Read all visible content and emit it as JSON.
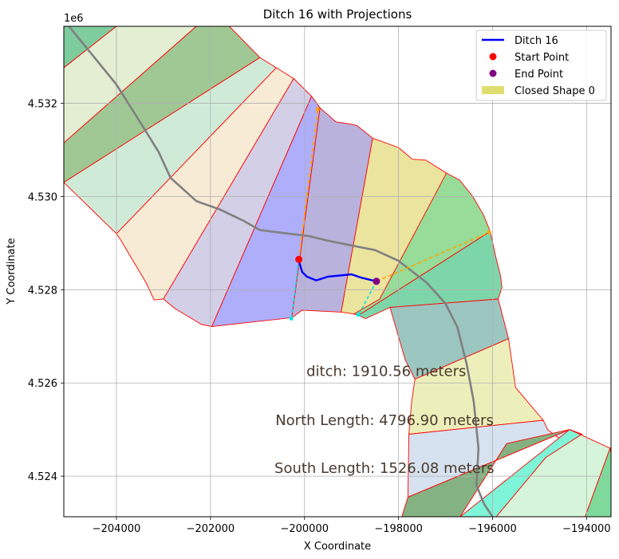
{
  "chart_data": {
    "type": "line",
    "title": "Ditch 16 with Projections",
    "xlabel": "X Coordinate",
    "ylabel": "Y Coordinate",
    "y_offset_label": "1e6",
    "xlim": [
      -205120,
      -193480
    ],
    "ylim": [
      4.52313,
      4.53365
    ],
    "x_ticks": [
      -204000,
      -202000,
      -200000,
      -198000,
      -196000,
      -194000
    ],
    "x_tick_labels": [
      "−204000",
      "−202000",
      "−200000",
      "−198000",
      "−196000",
      "−194000"
    ],
    "y_ticks": [
      4.524,
      4.526,
      4.528,
      4.53,
      4.532
    ],
    "y_tick_labels": [
      "4.524",
      "4.526",
      "4.528",
      "4.530",
      "4.532"
    ],
    "grid": true,
    "legend_position": "upper right",
    "legend": [
      {
        "label": "Ditch 16",
        "kind": "line",
        "color": "#0000ff"
      },
      {
        "label": "Start Point",
        "kind": "marker",
        "color": "#ff0000"
      },
      {
        "label": "End Point",
        "kind": "marker",
        "color": "#800080"
      },
      {
        "label": "Closed Shape 0",
        "kind": "patch",
        "color": "#e0dd70"
      }
    ],
    "annotations": [
      {
        "text": "ditch: 1910.56 meters",
        "x": -199960,
        "y": 4.52625
      },
      {
        "text": "North Length: 4796.90 meters",
        "x": -200620,
        "y": 4.5252
      },
      {
        "text": "South Length: 1526.08 meters",
        "x": -200640,
        "y": 4.52417
      }
    ],
    "zones": [
      {
        "color": "#7fcc9e",
        "points": [
          [
            -205120,
            4.53365
          ],
          [
            -204000,
            4.53365
          ],
          [
            -205120,
            4.53276
          ]
        ]
      },
      {
        "color": "#e3eed3",
        "points": [
          [
            -204000,
            4.53365
          ],
          [
            -202300,
            4.53365
          ],
          [
            -205120,
            4.53115
          ],
          [
            -205120,
            4.53276
          ]
        ]
      },
      {
        "color": "#a0c894",
        "points": [
          [
            -202300,
            4.53365
          ],
          [
            -201600,
            4.53365
          ],
          [
            -200950,
            4.53298
          ],
          [
            -205120,
            4.5303
          ],
          [
            -205120,
            4.53115
          ]
        ]
      },
      {
        "color": "#d0ead8",
        "points": [
          [
            -200950,
            4.53298
          ],
          [
            -200600,
            4.53276
          ],
          [
            -204000,
            4.5292
          ],
          [
            -205120,
            4.5303
          ]
        ]
      },
      {
        "color": "#f8ebd5",
        "points": [
          [
            -200600,
            4.53276
          ],
          [
            -200230,
            4.53253
          ],
          [
            -203000,
            4.5278
          ],
          [
            -203200,
            4.52778
          ],
          [
            -203370,
            4.52815
          ],
          [
            -203900,
            4.52905
          ],
          [
            -204000,
            4.5292
          ]
        ]
      },
      {
        "color": "#d3cfe7",
        "points": [
          [
            -200230,
            4.53253
          ],
          [
            -199850,
            4.53215
          ],
          [
            -201970,
            4.52721
          ],
          [
            -202200,
            4.52726
          ],
          [
            -202760,
            4.5276
          ],
          [
            -203000,
            4.5278
          ]
        ]
      },
      {
        "color": "#aeaefb",
        "points": [
          [
            -199850,
            4.53215
          ],
          [
            -199670,
            4.5319
          ],
          [
            -200270,
            4.5274
          ],
          [
            -201970,
            4.52721
          ]
        ]
      },
      {
        "color": "#b8b2dc",
        "points": [
          [
            -199670,
            4.5319
          ],
          [
            -199330,
            4.5316
          ],
          [
            -199000,
            4.53155
          ],
          [
            -198880,
            4.53152
          ],
          [
            -198550,
            4.53125
          ],
          [
            -199220,
            4.52752
          ],
          [
            -200050,
            4.52756
          ],
          [
            -200270,
            4.5274
          ]
        ]
      },
      {
        "color": "#ebe49f",
        "points": [
          [
            -198550,
            4.53125
          ],
          [
            -198000,
            4.53105
          ],
          [
            -197710,
            4.5308
          ],
          [
            -197420,
            4.53078
          ],
          [
            -196980,
            4.5305
          ],
          [
            -198200,
            4.5278
          ],
          [
            -198950,
            4.52748
          ],
          [
            -199220,
            4.52752
          ]
        ]
      },
      {
        "color": "#97dc98",
        "points": [
          [
            -196980,
            4.5305
          ],
          [
            -196700,
            4.53035
          ],
          [
            -196420,
            4.53
          ],
          [
            -196190,
            4.5296
          ],
          [
            -196050,
            4.52925
          ],
          [
            -198850,
            4.52745
          ],
          [
            -198950,
            4.52748
          ],
          [
            -198400,
            4.5278
          ]
        ]
      },
      {
        "color": "#7dd6aa",
        "points": [
          [
            -196050,
            4.52925
          ],
          [
            -195930,
            4.5287
          ],
          [
            -195830,
            4.5283
          ],
          [
            -195800,
            4.52805
          ],
          [
            -195880,
            4.5278
          ],
          [
            -198180,
            4.52762
          ],
          [
            -198700,
            4.52738
          ],
          [
            -198850,
            4.52745
          ]
        ]
      },
      {
        "color": "#9cc6c0",
        "points": [
          [
            -195880,
            4.5278
          ],
          [
            -195660,
            4.52695
          ],
          [
            -197650,
            4.52608
          ],
          [
            -197860,
            4.5265
          ],
          [
            -198180,
            4.52762
          ]
        ]
      },
      {
        "color": "#edefba",
        "points": [
          [
            -195660,
            4.52695
          ],
          [
            -195510,
            4.5259
          ],
          [
            -194920,
            4.5252
          ],
          [
            -197780,
            4.5249
          ],
          [
            -197720,
            4.5256
          ],
          [
            -197650,
            4.52608
          ]
        ]
      },
      {
        "color": "#d6e2ef",
        "points": [
          [
            -194920,
            4.5252
          ],
          [
            -194830,
            4.525
          ],
          [
            -194570,
            4.5248
          ],
          [
            -194360,
            4.525
          ],
          [
            -197800,
            4.52355
          ],
          [
            -197780,
            4.5249
          ]
        ]
      },
      {
        "color": "#84b283",
        "points": [
          [
            -194360,
            4.525
          ],
          [
            -195700,
            4.5247
          ],
          [
            -196690,
            4.52313
          ],
          [
            -197930,
            4.52313
          ],
          [
            -197800,
            4.52355
          ]
        ]
      },
      {
        "color": "#7ef4d8",
        "points": [
          [
            -194360,
            4.525
          ],
          [
            -196690,
            4.52313
          ],
          [
            -195920,
            4.52313
          ],
          [
            -194870,
            4.5244
          ],
          [
            -194100,
            4.5249
          ]
        ]
      },
      {
        "color": "#d6f4d9",
        "points": [
          [
            -194360,
            4.525
          ],
          [
            -194100,
            4.5249
          ],
          [
            -194870,
            4.5244
          ],
          [
            -195920,
            4.52313
          ],
          [
            -194030,
            4.52313
          ],
          [
            -193500,
            4.5246
          ]
        ]
      },
      {
        "color": "#7ed99a",
        "points": [
          [
            -193500,
            4.5246
          ],
          [
            -194030,
            4.52313
          ],
          [
            -193480,
            4.52313
          ],
          [
            -193480,
            4.5245
          ]
        ]
      }
    ],
    "centerline": {
      "color": "#808080",
      "points": [
        [
          -205050,
          4.5337
        ],
        [
          -204500,
          4.53302
        ],
        [
          -204000,
          4.5324
        ],
        [
          -203500,
          4.5316
        ],
        [
          -203100,
          4.53095
        ],
        [
          -202850,
          4.5304
        ],
        [
          -202300,
          4.5299
        ],
        [
          -201800,
          4.52972
        ],
        [
          -201300,
          4.52948
        ],
        [
          -200950,
          4.52928
        ],
        [
          -200400,
          4.52921
        ],
        [
          -199900,
          4.52915
        ],
        [
          -199500,
          4.52905
        ],
        [
          -199000,
          4.52895
        ],
        [
          -198500,
          4.52885
        ],
        [
          -198000,
          4.52862
        ],
        [
          -197400,
          4.52815
        ],
        [
          -197000,
          4.5277
        ],
        [
          -196750,
          4.5272
        ],
        [
          -196550,
          4.5264
        ],
        [
          -196400,
          4.5256
        ],
        [
          -196300,
          4.5246
        ],
        [
          -196340,
          4.5238
        ],
        [
          -196180,
          4.5234
        ],
        [
          -196000,
          4.52313
        ]
      ]
    },
    "series": [
      {
        "name": "Ditch 16",
        "color": "#0000ff",
        "points": [
          [
            -200120,
            4.52862
          ],
          [
            -200050,
            4.52838
          ],
          [
            -199950,
            4.52828
          ],
          [
            -199750,
            4.5282
          ],
          [
            -199500,
            4.52828
          ],
          [
            -199000,
            4.52833
          ],
          [
            -198800,
            4.52826
          ],
          [
            -198470,
            4.52818
          ]
        ]
      }
    ],
    "start_point": {
      "x": -200120,
      "y": 4.52865,
      "color": "#ff0000"
    },
    "end_point": {
      "x": -198470,
      "y": 4.52818,
      "color": "#800080"
    },
    "north_projection": {
      "color": "#ffa500",
      "points": [
        [
          -198470,
          4.52818
        ],
        [
          -196070,
          4.52923
        ]
      ]
    },
    "north_projection_start": {
      "color": "#ffa500",
      "points": [
        [
          -200120,
          4.52865
        ],
        [
          -199720,
          4.53187
        ]
      ]
    },
    "south_projection": {
      "color": "#00e5e5",
      "points": [
        [
          -198470,
          4.52818
        ],
        [
          -198850,
          4.52746
        ]
      ]
    },
    "south_projection_start": {
      "color": "#00e5e5",
      "points": [
        [
          -200120,
          4.52865
        ],
        [
          -200280,
          4.52738
        ]
      ]
    }
  }
}
